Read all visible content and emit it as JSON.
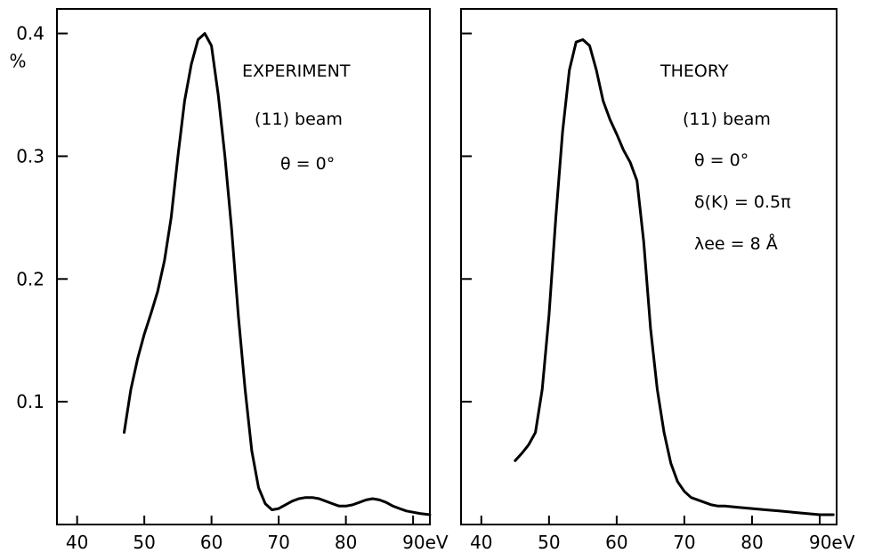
{
  "chart_data": [
    {
      "type": "line",
      "title": "EXPERIMENT",
      "annotations": [
        "(11) beam",
        "θ = 0°"
      ],
      "xlim": [
        37,
        92.5
      ],
      "ylim": [
        0,
        0.42
      ],
      "xticks": [
        40,
        50,
        60,
        70,
        80,
        90
      ],
      "xtick_labels": [
        "40",
        "50",
        "60",
        "70",
        "80",
        "90eV"
      ],
      "yticks": [
        0.1,
        0.2,
        0.3,
        0.4
      ],
      "ytick_labels": [
        "0.1",
        "0.2",
        "0.3",
        "0.4"
      ],
      "yunit": "%",
      "series": [
        {
          "x": [
            47,
            48,
            49,
            50,
            51,
            52,
            53,
            54,
            55,
            56,
            57,
            58,
            59,
            60,
            61,
            62,
            63,
            64,
            65,
            66,
            67,
            68,
            69,
            70,
            71,
            72,
            73,
            74,
            75,
            76,
            77,
            78,
            79,
            80,
            81,
            82,
            83,
            84,
            85,
            86,
            87,
            88,
            89,
            90,
            91,
            92.5
          ],
          "y": [
            0.075,
            0.11,
            0.135,
            0.155,
            0.172,
            0.19,
            0.215,
            0.25,
            0.3,
            0.345,
            0.375,
            0.395,
            0.4,
            0.39,
            0.35,
            0.3,
            0.24,
            0.17,
            0.11,
            0.06,
            0.03,
            0.017,
            0.012,
            0.013,
            0.016,
            0.019,
            0.021,
            0.022,
            0.022,
            0.021,
            0.019,
            0.017,
            0.015,
            0.015,
            0.016,
            0.018,
            0.02,
            0.021,
            0.02,
            0.018,
            0.015,
            0.013,
            0.011,
            0.01,
            0.009,
            0.008
          ]
        }
      ]
    },
    {
      "type": "line",
      "title": "THEORY",
      "annotations": [
        "(11) beam",
        "θ = 0°",
        "δ(K) = 0.5π",
        "λee = 8 Å"
      ],
      "xlim": [
        37,
        92.5
      ],
      "ylim": [
        0,
        0.42
      ],
      "xticks": [
        40,
        50,
        60,
        70,
        80,
        90
      ],
      "xtick_labels": [
        "40",
        "50",
        "60",
        "70",
        "80",
        "90eV"
      ],
      "series": [
        {
          "x": [
            45,
            46,
            47,
            48,
            49,
            50,
            51,
            52,
            53,
            54,
            55,
            56,
            57,
            58,
            59,
            60,
            61,
            62,
            63,
            64,
            65,
            66,
            67,
            68,
            69,
            70,
            71,
            72,
            73,
            74,
            75,
            76,
            78,
            80,
            82,
            84,
            86,
            88,
            90,
            92
          ],
          "y": [
            0.052,
            0.058,
            0.065,
            0.075,
            0.11,
            0.17,
            0.25,
            0.32,
            0.37,
            0.393,
            0.395,
            0.39,
            0.37,
            0.345,
            0.33,
            0.318,
            0.305,
            0.295,
            0.28,
            0.23,
            0.16,
            0.11,
            0.075,
            0.05,
            0.035,
            0.027,
            0.022,
            0.02,
            0.018,
            0.016,
            0.015,
            0.015,
            0.014,
            0.013,
            0.012,
            0.011,
            0.01,
            0.009,
            0.008,
            0.008
          ]
        }
      ]
    }
  ]
}
